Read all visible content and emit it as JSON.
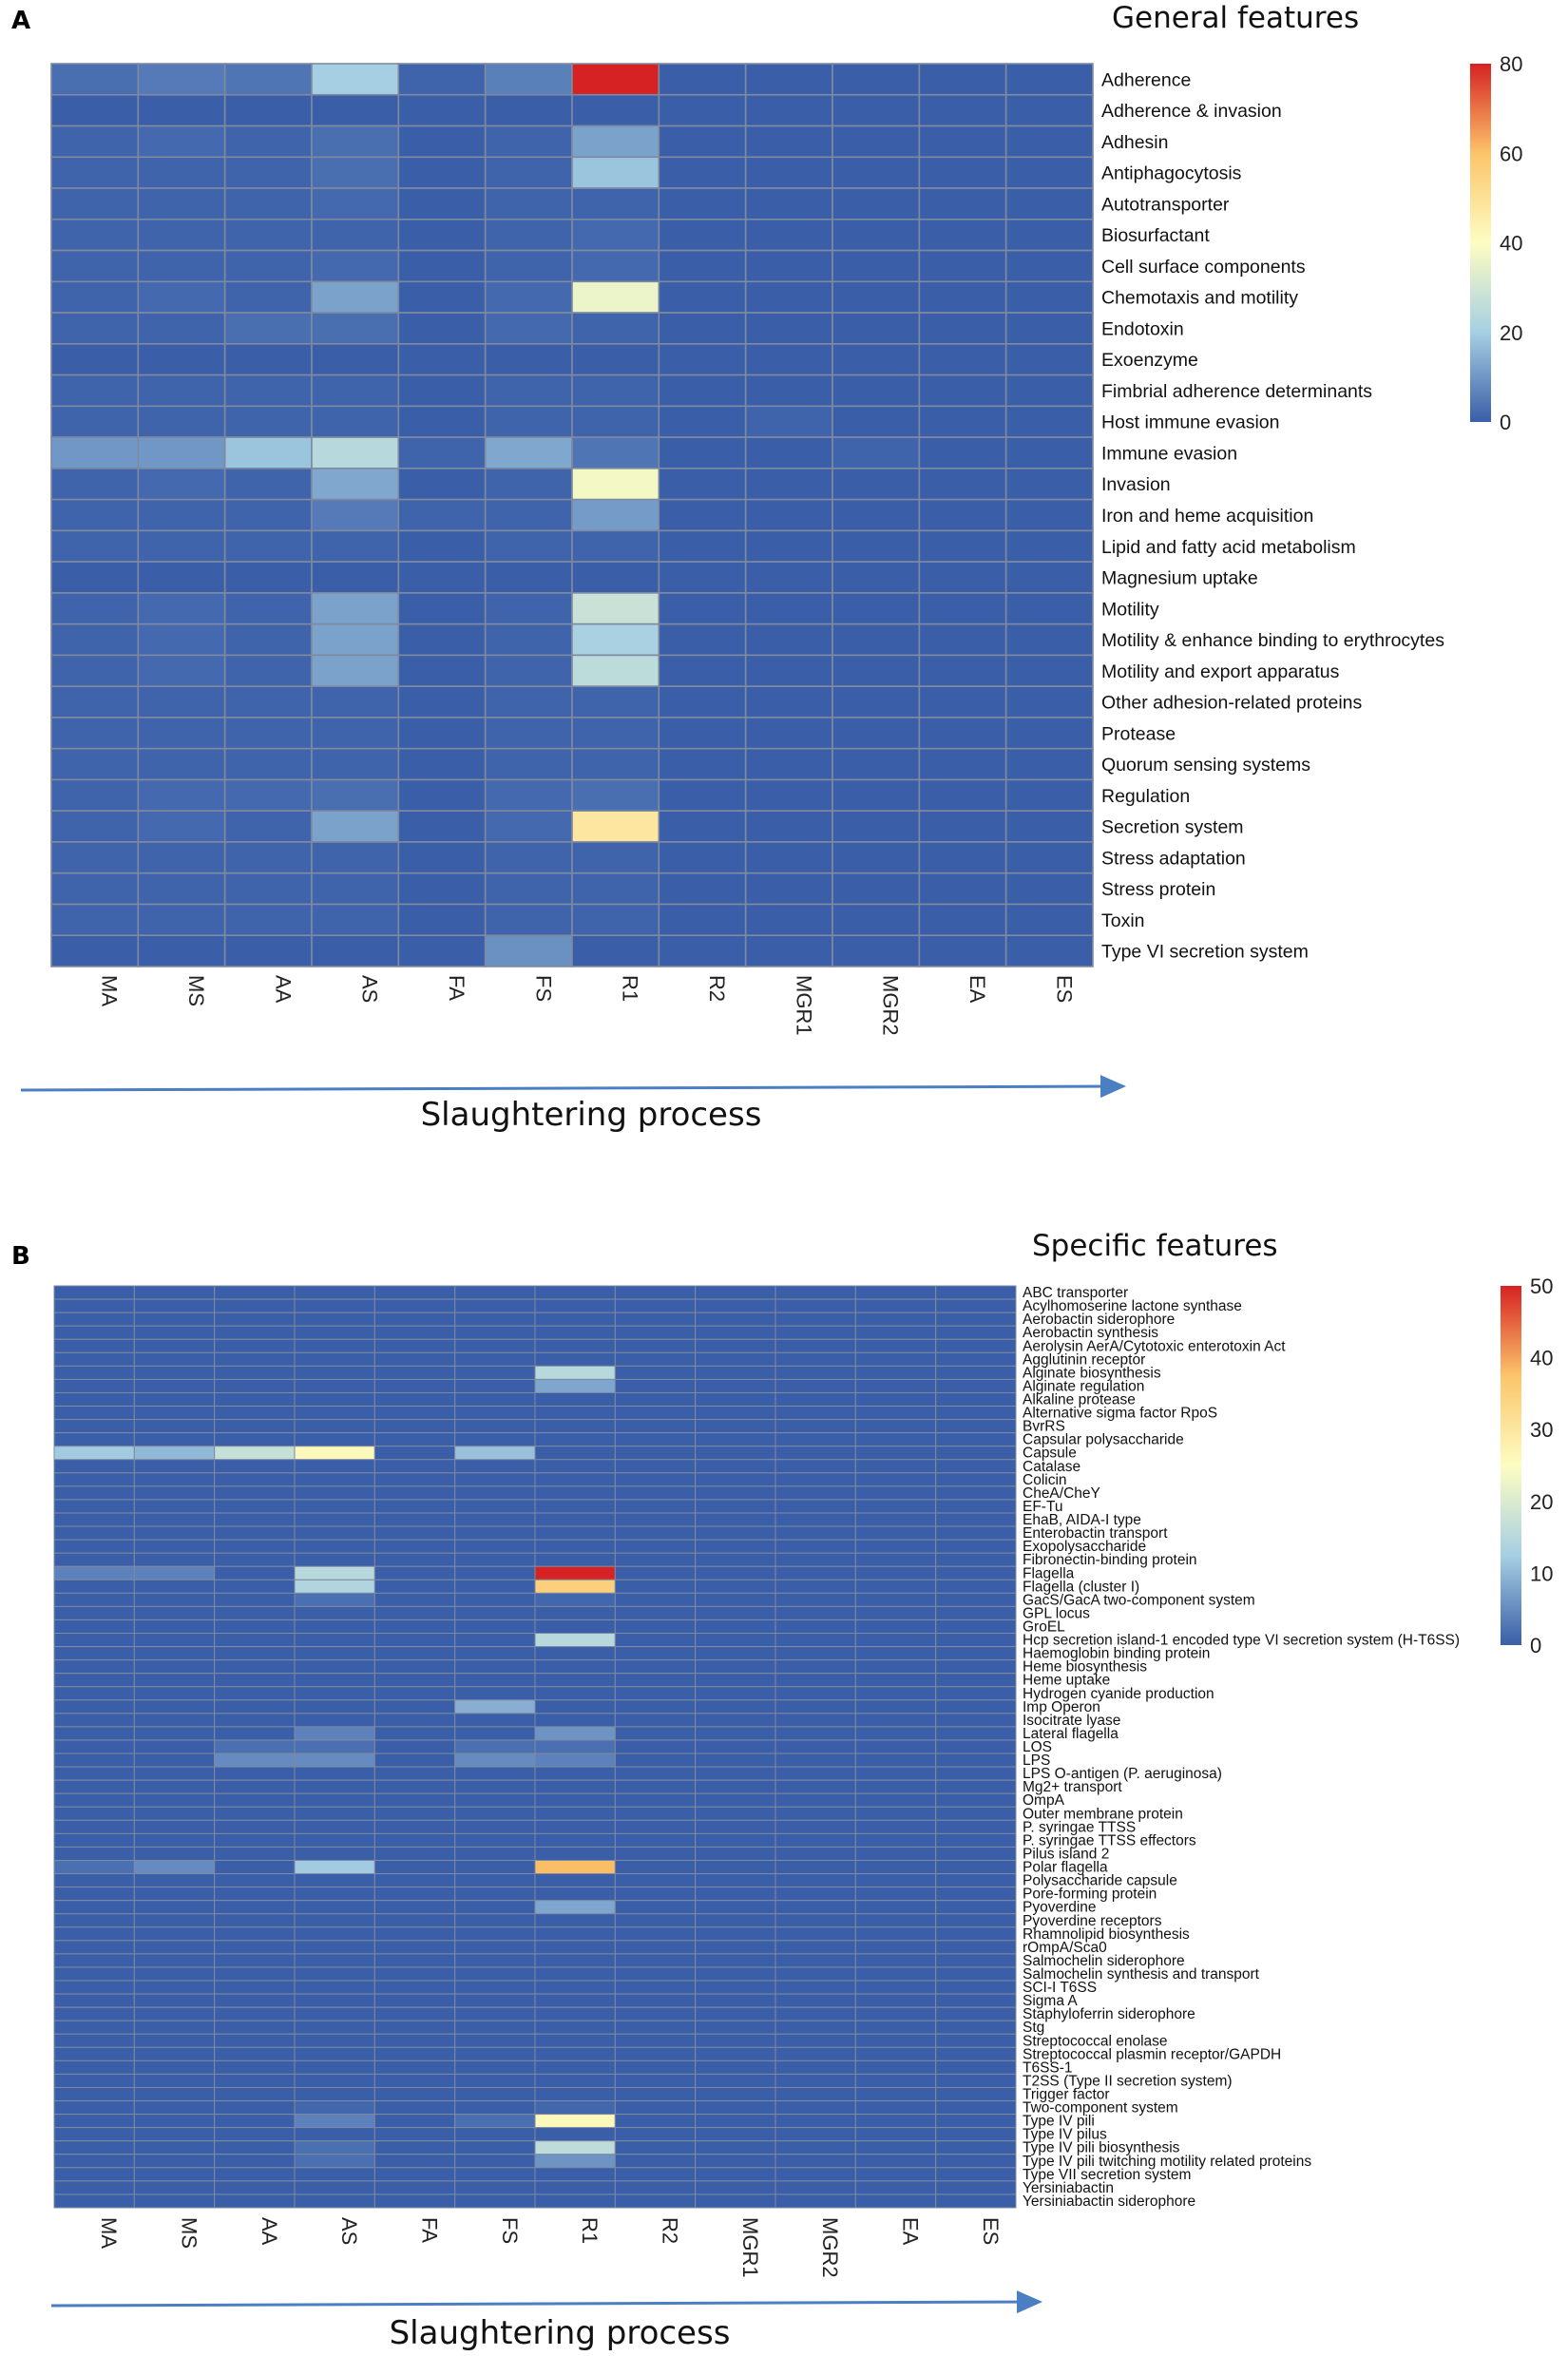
{
  "figure": {
    "panels": [
      {
        "letter": "A"
      },
      {
        "letter": "B"
      }
    ]
  },
  "chart_data": [
    {
      "type": "heatmap",
      "panel": "A",
      "title": "General features",
      "xlabel": "Slaughtering process",
      "columns": [
        "MA",
        "MS",
        "AA",
        "AS",
        "FA",
        "FS",
        "R1",
        "R2",
        "MGR1",
        "MGR2",
        "EA",
        "ES"
      ],
      "colorbar": {
        "min": 0,
        "max": 80,
        "ticks": [
          0,
          20,
          40,
          60,
          80
        ]
      },
      "rows": [
        "Adherence",
        "Adherence & invasion",
        "Adhesin",
        "Antiphagocytosis",
        "Autotransporter",
        "Biosurfactant",
        "Cell surface components",
        "Chemotaxis and motility",
        "Endotoxin",
        "Exoenzyme",
        "Fimbrial adherence determinants",
        "Host immune evasion",
        "Immune evasion",
        "Invasion",
        "Iron and heme acquisition",
        "Lipid and fatty acid metabolism",
        "Magnesium uptake",
        "Motility",
        "Motility & enhance binding to erythrocytes",
        "Motility and export apparatus",
        "Other adhesion-related proteins",
        "Protease",
        "Quorum sensing systems",
        "Regulation",
        "Secretion system",
        "Stress adaptation",
        "Stress protein",
        "Toxin",
        "Type VI secretion system"
      ],
      "values": {
        "Adherence": [
          3,
          5,
          4,
          20,
          1,
          6,
          80,
          0,
          0,
          0,
          0,
          0
        ],
        "Adherence & invasion": [
          0,
          0,
          0,
          0,
          0,
          0,
          0,
          0,
          0,
          0,
          0,
          0
        ],
        "Adhesin": [
          1,
          2,
          1,
          3,
          0,
          1,
          12,
          0,
          0,
          0,
          0,
          0
        ],
        "Antiphagocytosis": [
          1,
          1,
          1,
          3,
          0,
          1,
          18,
          0,
          0,
          0,
          0,
          0
        ],
        "Autotransporter": [
          1,
          1,
          1,
          2,
          0,
          1,
          1,
          0,
          0,
          0,
          0,
          0
        ],
        "Biosurfactant": [
          1,
          1,
          1,
          1,
          0,
          1,
          2,
          0,
          0,
          0,
          0,
          0
        ],
        "Cell surface components": [
          1,
          1,
          1,
          2,
          0,
          1,
          2,
          0,
          0,
          0,
          0,
          0
        ],
        "Chemotaxis and motility": [
          1,
          2,
          1,
          12,
          0,
          2,
          36,
          0,
          0,
          0,
          0,
          0
        ],
        "Endotoxin": [
          1,
          1,
          3,
          3,
          0,
          2,
          1,
          0,
          0,
          0,
          0,
          0
        ],
        "Exoenzyme": [
          0,
          0,
          0,
          0,
          0,
          0,
          0,
          0,
          0,
          0,
          0,
          0
        ],
        "Fimbrial adherence determinants": [
          1,
          1,
          1,
          1,
          0,
          1,
          1,
          0,
          0,
          0,
          0,
          0
        ],
        "Host immune evasion": [
          1,
          1,
          1,
          1,
          0,
          1,
          1,
          0,
          1,
          0,
          0,
          0
        ],
        "Immune evasion": [
          10,
          10,
          18,
          24,
          1,
          13,
          4,
          0,
          0,
          1,
          0,
          0
        ],
        "Invasion": [
          1,
          2,
          1,
          13,
          0,
          1,
          38,
          0,
          0,
          0,
          0,
          0
        ],
        "Iron and heme acquisition": [
          1,
          1,
          1,
          5,
          1,
          1,
          11,
          0,
          0,
          0,
          0,
          0
        ],
        "Lipid and fatty acid metabolism": [
          1,
          1,
          1,
          1,
          0,
          1,
          1,
          0,
          0,
          0,
          0,
          0
        ],
        "Magnesium uptake": [
          0,
          0,
          0,
          0,
          0,
          0,
          0,
          0,
          0,
          0,
          0,
          0
        ],
        "Motility": [
          1,
          2,
          1,
          12,
          0,
          1,
          28,
          0,
          0,
          0,
          0,
          0
        ],
        "Motility & enhance binding to erythrocytes": [
          1,
          2,
          1,
          12,
          0,
          1,
          21,
          0,
          0,
          0,
          0,
          0
        ],
        "Motility and export apparatus": [
          1,
          2,
          1,
          12,
          0,
          1,
          25,
          0,
          0,
          0,
          0,
          0
        ],
        "Other adhesion-related proteins": [
          1,
          1,
          1,
          1,
          0,
          1,
          1,
          0,
          0,
          0,
          0,
          0
        ],
        "Protease": [
          1,
          1,
          1,
          1,
          0,
          1,
          1,
          0,
          0,
          0,
          0,
          0
        ],
        "Quorum sensing systems": [
          1,
          1,
          1,
          1,
          0,
          1,
          1,
          0,
          0,
          0,
          0,
          0
        ],
        "Regulation": [
          1,
          2,
          2,
          3,
          0,
          2,
          3,
          0,
          0,
          0,
          0,
          0
        ],
        "Secretion system": [
          1,
          2,
          1,
          12,
          0,
          2,
          48,
          0,
          0,
          0,
          0,
          0
        ],
        "Stress adaptation": [
          1,
          1,
          1,
          1,
          0,
          1,
          1,
          0,
          0,
          0,
          0,
          0
        ],
        "Stress protein": [
          1,
          1,
          1,
          1,
          0,
          1,
          1,
          0,
          0,
          0,
          0,
          0
        ],
        "Toxin": [
          1,
          1,
          1,
          1,
          0,
          1,
          1,
          0,
          0,
          0,
          0,
          0
        ],
        "Type VI secretion system": [
          0,
          0,
          0,
          0,
          0,
          9,
          0,
          0,
          0,
          0,
          0,
          0
        ]
      }
    },
    {
      "type": "heatmap",
      "panel": "B",
      "title": "Specific features",
      "xlabel": "Slaughtering process",
      "columns": [
        "MA",
        "MS",
        "AA",
        "AS",
        "FA",
        "FS",
        "R1",
        "R2",
        "MGR1",
        "MGR2",
        "EA",
        "ES"
      ],
      "colorbar": {
        "min": 0,
        "max": 50,
        "ticks": [
          0,
          10,
          20,
          30,
          40,
          50
        ]
      },
      "rows": [
        "ABC transporter",
        "Acylhomoserine lactone synthase",
        "Aerobactin siderophore",
        "Aerobactin synthesis",
        "Aerolysin AerA/Cytotoxic enterotoxin Act",
        "Agglutinin receptor",
        "Alginate biosynthesis",
        "Alginate regulation",
        "Alkaline protease",
        "Alternative sigma factor RpoS",
        "BvrRS",
        "Capsular polysaccharide",
        "Capsule",
        "Catalase",
        "Colicin",
        "CheA/CheY",
        "EF-Tu",
        "EhaB, AIDA-I type",
        "Enterobactin transport",
        "Exopolysaccharide",
        "Fibronectin-binding protein",
        "Flagella",
        "Flagella (cluster I)",
        "GacS/GacA two-component system",
        "GPL locus",
        "GroEL",
        "Hcp secretion island-1 encoded type VI secretion system (H-T6SS)",
        "Haemoglobin binding protein",
        "Heme biosynthesis",
        "Heme uptake",
        "Hydrogen cyanide production",
        "Imp Operon",
        "Isocitrate lyase",
        "Lateral flagella",
        "LOS",
        "LPS",
        "LPS O-antigen (P. aeruginosa)",
        "Mg2+ transport",
        "OmpA",
        "Outer membrane protein",
        "P. syringae TTSS",
        "P. syringae TTSS effectors",
        "Pilus island 2",
        "Polar flagella",
        "Polysaccharide capsule",
        "Pore-forming protein",
        "Pyoverdine",
        "Pyoverdine receptors",
        "Rhamnolipid biosynthesis",
        "rOmpA/Sca0",
        "Salmochelin siderophore",
        "Salmochelin synthesis and transport",
        "SCI-I T6SS",
        "Sigma A",
        "Staphyloferrin siderophore",
        "Stg",
        "Streptococcal enolase",
        "Streptococcal plasmin receptor/GAPDH",
        "T6SS-1",
        "T2SS (Type II secretion system)",
        "Trigger factor",
        "Two-component system",
        "Type IV pili",
        "Type IV pilus",
        "Type IV pili biosynthesis",
        "Type IV pili twitching motility related proteins",
        "Type VII secretion system",
        "Yersiniabactin",
        "Yersiniabactin siderophore"
      ],
      "values": {
        "Alginate biosynthesis": [
          0,
          0,
          0,
          0,
          0,
          0,
          15,
          0,
          0,
          0,
          0,
          0
        ],
        "Alginate regulation": [
          0,
          0,
          0,
          0,
          0,
          0,
          8,
          0,
          0,
          0,
          0,
          0
        ],
        "Capsule": [
          12,
          10,
          17,
          26,
          0,
          11,
          0,
          0,
          0,
          0,
          0,
          0
        ],
        "Flagella": [
          4,
          4,
          0,
          15,
          0,
          0,
          50,
          0,
          0,
          0,
          0,
          0
        ],
        "Flagella (cluster I)": [
          0,
          0,
          0,
          14,
          0,
          0,
          35,
          0,
          0,
          0,
          0,
          0
        ],
        "GacS/GacA two-component system": [
          0,
          0,
          0,
          2,
          0,
          0,
          1,
          0,
          0,
          0,
          0,
          0
        ],
        "Hcp secretion island-1 encoded type VI secretion system (H-T6SS)": [
          0,
          0,
          0,
          0,
          0,
          0,
          15,
          0,
          0,
          0,
          0,
          0
        ],
        "Imp Operon": [
          0,
          0,
          0,
          0,
          0,
          9,
          0,
          0,
          0,
          0,
          0,
          0
        ],
        "Lateral flagella": [
          0,
          0,
          0,
          4,
          0,
          0,
          6,
          0,
          0,
          0,
          0,
          0
        ],
        "LOS": [
          0,
          0,
          2,
          2,
          0,
          2,
          2,
          0,
          0,
          0,
          0,
          0
        ],
        "LPS": [
          0,
          0,
          5,
          5,
          0,
          5,
          4,
          0,
          0,
          0,
          0,
          0
        ],
        "Polar flagella": [
          2,
          5,
          0,
          12,
          0,
          0,
          38,
          0,
          0,
          0,
          0,
          0
        ],
        "Pyoverdine": [
          0,
          0,
          0,
          0,
          0,
          0,
          8,
          0,
          0,
          0,
          0,
          0
        ],
        "Two-component system": [
          0,
          0,
          0,
          1,
          0,
          0,
          1,
          0,
          0,
          0,
          0,
          0
        ],
        "Type IV pili": [
          0,
          0,
          0,
          4,
          0,
          2,
          26,
          0,
          0,
          0,
          0,
          0
        ],
        "Type IV pili biosynthesis": [
          0,
          0,
          0,
          2,
          0,
          0,
          16,
          0,
          0,
          0,
          0,
          0
        ],
        "Type IV pili twitching motility related proteins": [
          0,
          0,
          0,
          2,
          0,
          0,
          6,
          0,
          0,
          0,
          0,
          0
        ]
      }
    }
  ]
}
